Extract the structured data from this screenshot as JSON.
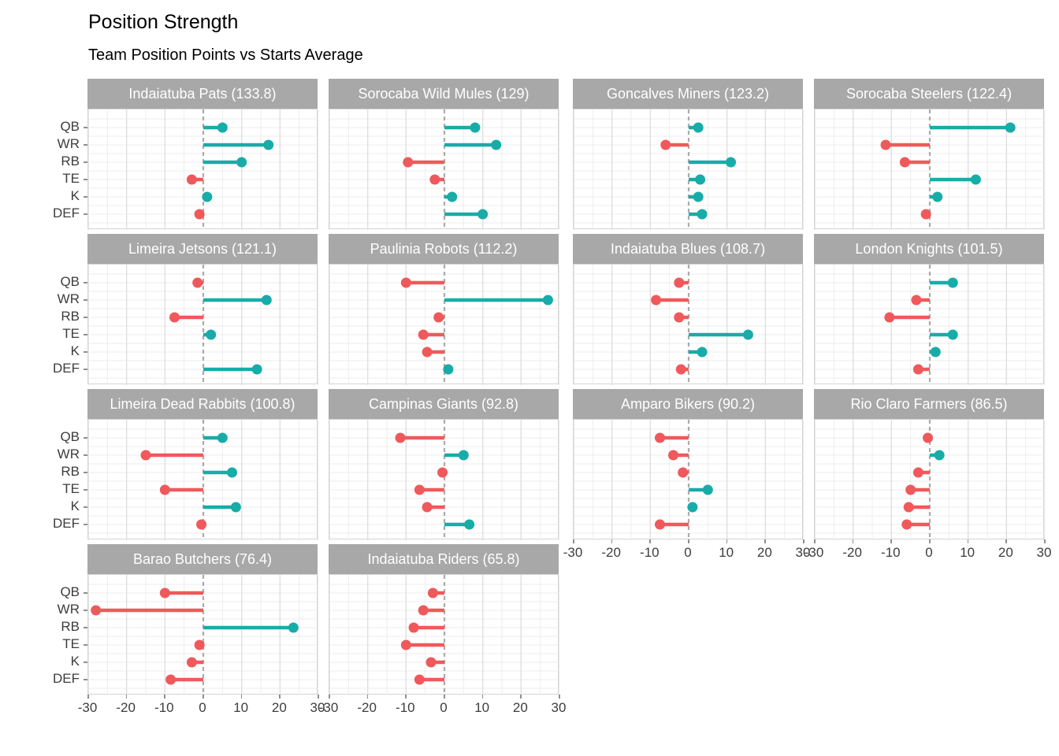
{
  "title": "Position Strength",
  "subtitle": "Team Position Points vs Starts Average",
  "chart_data": {
    "type": "lollipop",
    "orientation": "horizontal",
    "facet_layout": {
      "columns": 4,
      "rows": 4
    },
    "categories": [
      "QB",
      "WR",
      "RB",
      "TE",
      "K",
      "DEF"
    ],
    "x_ticks": [
      -30,
      -20,
      -10,
      0,
      10,
      20,
      30
    ],
    "xlim": [
      -30,
      30
    ],
    "grid": "on",
    "zero_line": "dashed",
    "colors": {
      "positive": "#18ACA8",
      "negative": "#F0595B",
      "strip_bg": "#A8A8A8",
      "strip_text": "#FFFFFF",
      "grid_major": "#DFDFDF",
      "grid_minor": "#EDEDED",
      "zero_line": "#ABABAB",
      "axis_text": "#3D3D3D"
    },
    "facets": [
      {
        "label": "Indaiatuba Pats (133.8)",
        "values": [
          5,
          17,
          10,
          -3,
          1,
          -1
        ]
      },
      {
        "label": "Sorocaba Wild Mules (129)",
        "values": [
          8,
          13.5,
          -9.5,
          -2.5,
          2,
          10
        ]
      },
      {
        "label": "Goncalves Miners (123.2)",
        "values": [
          2.5,
          -6,
          11,
          3,
          2.5,
          3.5
        ]
      },
      {
        "label": "Sorocaba Steelers (122.4)",
        "values": [
          21,
          -11.5,
          -6.5,
          12,
          2,
          -1
        ]
      },
      {
        "label": "Limeira Jetsons (121.1)",
        "values": [
          -1.5,
          16.5,
          -7.5,
          2,
          null,
          14
        ]
      },
      {
        "label": "Paulinia Robots (112.2)",
        "values": [
          -10,
          27,
          -1.5,
          -5.5,
          -4.5,
          1
        ]
      },
      {
        "label": "Indaiatuba Blues (108.7)",
        "values": [
          -2.5,
          -8.5,
          -2.5,
          15.5,
          3.5,
          -2
        ]
      },
      {
        "label": "London Knights (101.5)",
        "values": [
          6,
          -3.5,
          -10.5,
          6,
          1.5,
          -3
        ]
      },
      {
        "label": "Limeira Dead Rabbits (100.8)",
        "values": [
          5,
          -15,
          7.5,
          -10,
          8.5,
          -0.5
        ]
      },
      {
        "label": "Campinas Giants (92.8)",
        "values": [
          -11.5,
          5,
          -0.5,
          -6.5,
          -4.5,
          6.5
        ]
      },
      {
        "label": "Amparo Bikers (90.2)",
        "values": [
          -7.5,
          -4,
          -1.5,
          5,
          1,
          -7.5
        ]
      },
      {
        "label": "Rio Claro Farmers (86.5)",
        "values": [
          -0.5,
          2.5,
          -3,
          -5,
          -5.5,
          -6
        ]
      },
      {
        "label": "Barao Butchers (76.4)",
        "values": [
          -10,
          -28,
          23.5,
          -1,
          -3,
          -8.5
        ]
      },
      {
        "label": "Indaiatuba Riders (65.8)",
        "values": [
          -3,
          -5.5,
          -8,
          -10,
          -3.5,
          -6.5
        ]
      }
    ]
  }
}
